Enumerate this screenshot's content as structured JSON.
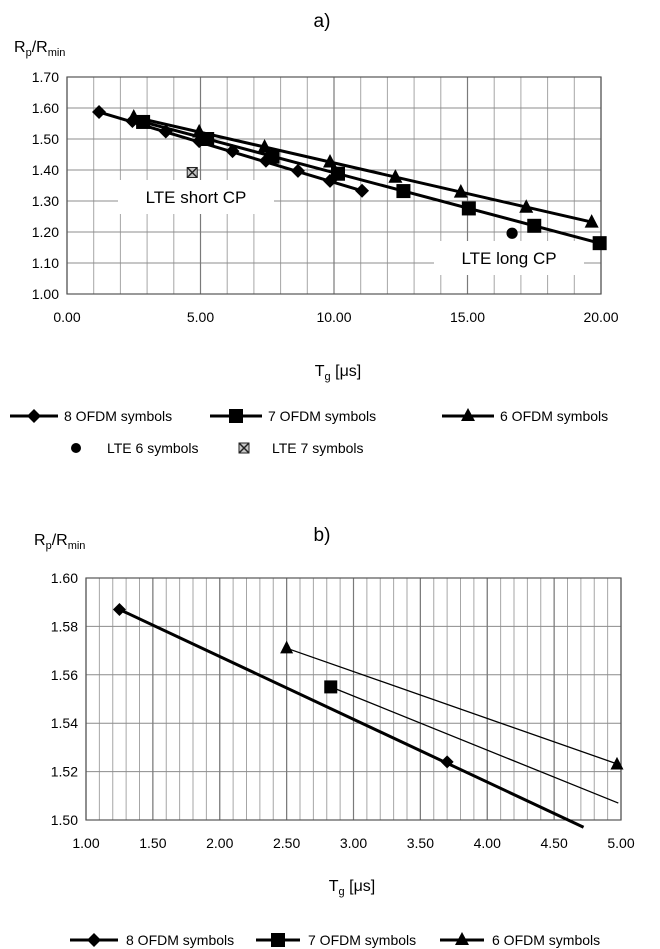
{
  "chart_data": [
    {
      "type": "line",
      "title": "a)",
      "ylabel": {
        "base": "R",
        "sub1": "p",
        "mid": "/R",
        "sub2": "min"
      },
      "xlabel": {
        "base": "T",
        "sub": "g",
        "rest": " [μs]"
      },
      "xlim": [
        0,
        20
      ],
      "ylim": [
        1.0,
        1.7
      ],
      "xticks": [
        "0.00",
        "5.00",
        "10.00",
        "15.00",
        "20.00"
      ],
      "yticks": [
        "1.00",
        "1.10",
        "1.20",
        "1.30",
        "1.40",
        "1.50",
        "1.60",
        "1.70"
      ],
      "grid": true,
      "series": [
        {
          "name": "8 OFDM symbols",
          "marker": "diamond",
          "points": [
            [
              1.2,
              1.587
            ],
            [
              2.45,
              1.558
            ],
            [
              3.7,
              1.524
            ],
            [
              4.95,
              1.493
            ],
            [
              6.2,
              1.461
            ],
            [
              7.45,
              1.43
            ],
            [
              8.65,
              1.397
            ],
            [
              9.85,
              1.365
            ],
            [
              11.05,
              1.333
            ]
          ]
        },
        {
          "name": "7 OFDM symbols",
          "marker": "square",
          "points": [
            [
              2.85,
              1.555
            ],
            [
              5.25,
              1.5
            ],
            [
              7.7,
              1.443
            ],
            [
              10.15,
              1.388
            ],
            [
              12.6,
              1.332
            ],
            [
              15.05,
              1.276
            ],
            [
              17.5,
              1.22
            ],
            [
              19.95,
              1.164
            ]
          ]
        },
        {
          "name": "6 OFDM symbols",
          "marker": "triangle",
          "points": [
            [
              2.5,
              1.571
            ],
            [
              4.95,
              1.523
            ],
            [
              7.4,
              1.474
            ],
            [
              9.85,
              1.426
            ],
            [
              12.3,
              1.377
            ],
            [
              14.75,
              1.329
            ],
            [
              17.2,
              1.28
            ],
            [
              19.65,
              1.232
            ]
          ]
        },
        {
          "name": "LTE 6 symbols",
          "marker": "circle",
          "line": false,
          "points": [
            [
              16.67,
              1.196
            ]
          ]
        },
        {
          "name": "LTE 7 symbols",
          "marker": "crossbox",
          "line": false,
          "points": [
            [
              4.69,
              1.392
            ]
          ]
        }
      ],
      "annotations": [
        {
          "text": "LTE short CP",
          "x": 4.7,
          "y": 1.327
        },
        {
          "text": "LTE long CP",
          "x": 17.2,
          "y": 1.117
        }
      ]
    },
    {
      "type": "line",
      "title": "b)",
      "ylabel": {
        "base": "R",
        "sub1": "p",
        "mid": "/R",
        "sub2": "min"
      },
      "xlabel": {
        "base": "T",
        "sub": "g",
        "rest": " [μs]"
      },
      "xlim": [
        1.0,
        5.0
      ],
      "ylim": [
        1.5,
        1.6
      ],
      "xticks": [
        "1.00",
        "1.50",
        "2.00",
        "2.50",
        "3.00",
        "3.50",
        "4.00",
        "4.50",
        "5.00"
      ],
      "yticks": [
        "1.50",
        "1.52",
        "1.54",
        "1.56",
        "1.58",
        "1.60"
      ],
      "grid": true,
      "series": [
        {
          "name": "8 OFDM symbols",
          "marker": "diamond",
          "line_end": [
            4.72,
            1.497
          ],
          "points": [
            [
              1.25,
              1.587
            ],
            [
              3.7,
              1.524
            ]
          ]
        },
        {
          "name": "7 OFDM symbols",
          "marker": "square",
          "line_end": [
            4.98,
            1.507
          ],
          "points": [
            [
              2.83,
              1.555
            ]
          ]
        },
        {
          "name": "6 OFDM symbols",
          "marker": "triangle",
          "line_end": [
            4.98,
            1.523
          ],
          "points": [
            [
              2.5,
              1.571
            ],
            [
              4.97,
              1.523
            ]
          ]
        }
      ]
    }
  ],
  "legend_a": {
    "items": [
      "8 OFDM symbols",
      "7 OFDM symbols",
      "6 OFDM symbols",
      "LTE 6 symbols",
      "LTE 7 symbols"
    ]
  },
  "legend_b": {
    "items": [
      "8 OFDM symbols",
      "7 OFDM symbols",
      "6 OFDM symbols"
    ]
  }
}
